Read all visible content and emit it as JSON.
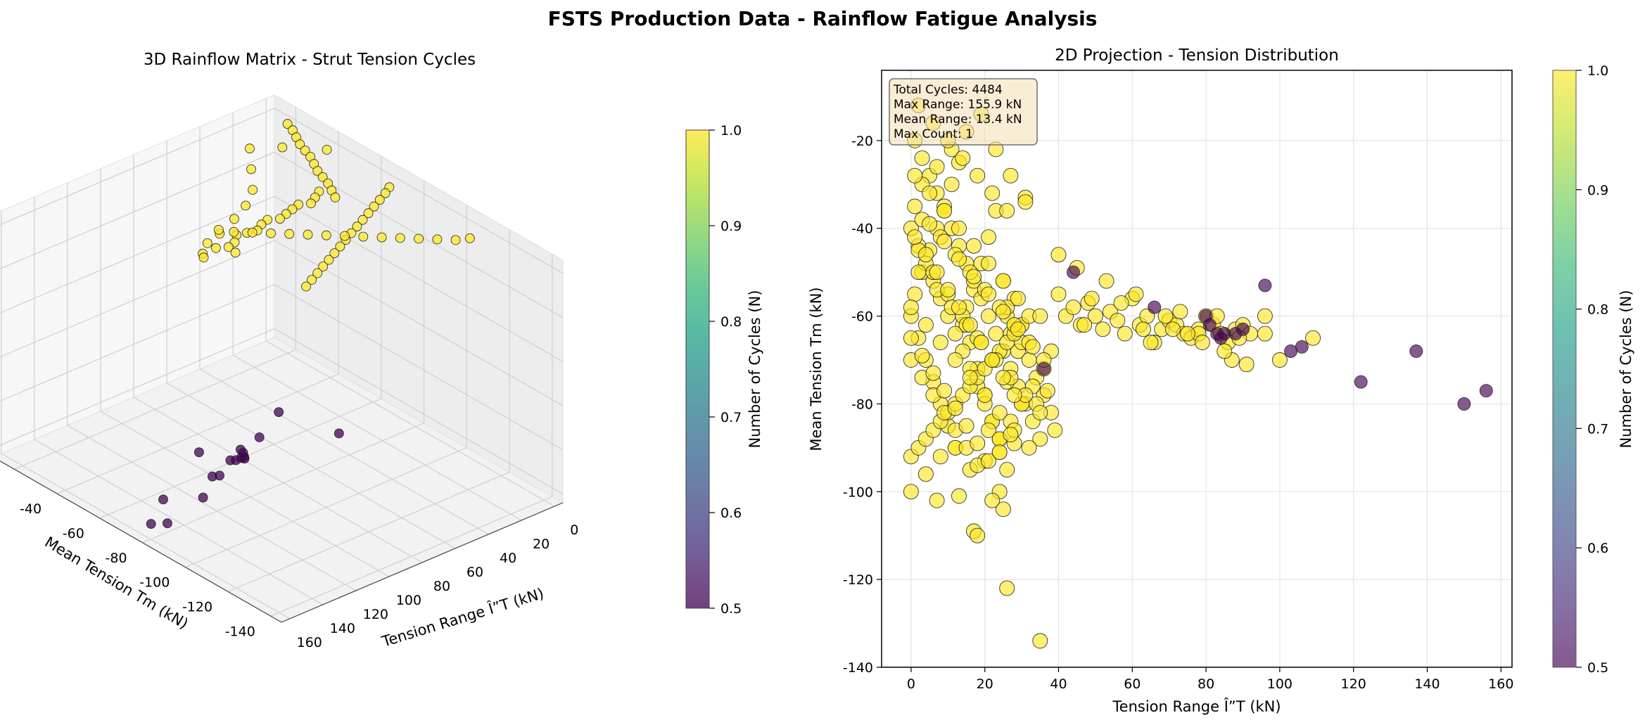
{
  "figure": {
    "title": "FSTS Production Data - Rainflow Fatigue Analysis"
  },
  "colors": {
    "viridis": [
      "#440154",
      "#482878",
      "#3e4989",
      "#31688e",
      "#26828e",
      "#1f9e89",
      "#35b779",
      "#6ece58",
      "#b5de2b",
      "#fde725"
    ],
    "cycle_high": "#fde725",
    "cycle_low": "#440154",
    "grid": "#dcdcdc",
    "pane": "#f2f2f2",
    "statbox_fill": "#f5deb3"
  },
  "chart_data": [
    {
      "type": "scatter3d",
      "title": "3D Rainflow Matrix - Strut Tension Cycles",
      "xlabel": "Tension Range Î”T (kN)",
      "ylabel": "Mean Tension Tm (kN)",
      "zlabel": "",
      "xlim": [
        -5,
        165
      ],
      "ylim": [
        -145,
        -10
      ],
      "zlim": [
        0.48,
        1.03
      ],
      "xticks": [
        0,
        20,
        40,
        60,
        80,
        100,
        120,
        140,
        160
      ],
      "yticks": [
        -140,
        -120,
        -100,
        -80,
        -60,
        -40,
        -20
      ],
      "zticks": [
        0.5,
        0.6,
        0.7,
        0.8,
        0.9,
        1.0
      ],
      "colorbar": {
        "label": "Number of Cycles (N)",
        "range": [
          0.5,
          1.0
        ],
        "ticks": [
          0.5,
          0.6,
          0.7,
          0.8,
          0.9,
          1.0
        ]
      },
      "series": [
        {
          "z": 1.0,
          "x": [
            0,
            2,
            5,
            8,
            10,
            12,
            15,
            18,
            20,
            22,
            25,
            28,
            30,
            35,
            40,
            45,
            50,
            55,
            60,
            65,
            70,
            75,
            80,
            85,
            90,
            95,
            100,
            3,
            8,
            14,
            20,
            26,
            32,
            38,
            44,
            50,
            56,
            62,
            68,
            74,
            80,
            86,
            92,
            6,
            12,
            18,
            24,
            30,
            36,
            42,
            48,
            54,
            60,
            66,
            72,
            78,
            84,
            90,
            2,
            16,
            28,
            40,
            52,
            64,
            76,
            88,
            100,
            108,
            110,
            96
          ],
          "y": [
            -20,
            -24,
            -28,
            -32,
            -36,
            -40,
            -44,
            -48,
            -52,
            -56,
            -60,
            -64,
            -58,
            -60,
            -62,
            -60,
            -61,
            -62,
            -63,
            -61,
            -62,
            -64,
            -63,
            -62,
            -65,
            -66,
            -64,
            -70,
            -72,
            -74,
            -76,
            -78,
            -80,
            -82,
            -84,
            -86,
            -88,
            -90,
            -92,
            -94,
            -96,
            -98,
            -100,
            -110,
            -108,
            -104,
            -100,
            -96,
            -92,
            -88,
            -84,
            -80,
            -76,
            -72,
            -68,
            -64,
            -60,
            -58,
            -40,
            -30,
            -24,
            -34,
            -44,
            -50,
            -54,
            -56,
            -60,
            -64,
            -66,
            -70
          ]
        },
        {
          "z": 0.5,
          "x": [
            156,
            150,
            137,
            122,
            106,
            103,
            96,
            90,
            88,
            85,
            83,
            81,
            80,
            84,
            66,
            44,
            36
          ],
          "y": [
            -77,
            -80,
            -68,
            -75,
            -67,
            -68,
            -53,
            -63,
            -64,
            -64,
            -64,
            -62,
            -60,
            -65,
            -58,
            -50,
            -72
          ]
        }
      ]
    },
    {
      "type": "scatter",
      "title": "2D Projection - Tension Distribution",
      "xlabel": "Tension Range Î”T (kN)",
      "ylabel": "Mean Tension Tm (kN)",
      "xlim": [
        -8,
        163
      ],
      "ylim": [
        -140,
        -4
      ],
      "xticks": [
        0,
        20,
        40,
        60,
        80,
        100,
        120,
        140,
        160
      ],
      "yticks": [
        -140,
        -120,
        -100,
        -80,
        -60,
        -40,
        -20
      ],
      "grid": true,
      "colorbar": {
        "label": "Number of Cycles (N)",
        "range": [
          0.5,
          1.0
        ],
        "ticks": [
          0.5,
          0.6,
          0.7,
          0.8,
          0.9,
          1.0
        ]
      },
      "stats": [
        "Total Cycles: 4484",
        "Max Range: 155.9 kN",
        "Mean Range: 13.4 kN",
        "Max Count: 1"
      ],
      "series": [
        {
          "count": 1,
          "x": [
            0,
            1,
            2,
            3,
            4,
            5,
            6,
            7,
            8,
            9,
            10,
            11,
            12,
            13,
            14,
            15,
            16,
            17,
            18,
            19,
            20,
            21,
            22,
            23,
            24,
            25,
            26,
            27,
            28,
            29,
            30,
            0,
            2,
            4,
            6,
            8,
            10,
            12,
            14,
            16,
            18,
            20,
            22,
            24,
            26,
            28,
            30,
            32,
            34,
            36,
            38,
            1,
            3,
            5,
            7,
            9,
            11,
            13,
            15,
            17,
            19,
            21,
            23,
            25,
            27,
            29,
            31,
            33,
            35,
            40,
            42,
            44,
            46,
            48,
            50,
            52,
            54,
            56,
            58,
            60,
            62,
            64,
            66,
            68,
            70,
            72,
            74,
            76,
            78,
            80,
            82,
            84,
            86,
            88,
            90,
            92,
            96,
            96,
            100,
            109,
            87,
            85,
            78,
            73,
            63,
            31,
            45,
            47,
            49,
            53,
            57,
            61,
            65,
            69,
            71,
            75,
            79,
            83,
            89,
            91,
            0,
            2,
            4,
            6,
            8,
            10,
            12,
            14,
            16,
            18,
            20,
            22,
            24,
            26,
            28,
            30,
            32,
            35,
            3,
            7,
            11,
            15,
            19,
            23,
            27,
            31,
            0,
            4,
            8,
            12,
            16,
            20,
            24,
            28,
            1,
            5,
            9,
            13,
            17,
            21,
            25,
            29,
            2,
            6,
            10,
            14,
            18,
            22,
            26,
            0,
            3,
            6,
            9,
            12,
            15,
            18,
            21,
            24,
            27,
            30,
            33,
            36,
            38,
            40,
            34,
            37,
            25,
            24,
            26,
            17,
            18,
            13,
            22,
            7,
            26,
            35,
            2,
            6,
            10,
            14,
            18,
            22,
            26,
            30,
            3,
            8,
            12,
            16,
            20,
            24,
            28,
            32,
            36,
            1,
            5,
            9,
            13,
            17,
            21,
            25,
            29,
            33,
            0,
            4,
            8,
            12,
            16,
            20,
            24,
            28,
            32,
            2,
            7,
            11,
            15,
            19,
            23,
            27,
            31,
            35,
            39,
            0,
            3,
            6,
            9,
            12,
            15,
            18,
            21,
            24,
            27,
            1,
            4,
            7,
            10,
            13,
            16,
            19,
            22,
            25,
            28
          ],
          "y": [
            -60,
            -55,
            -65,
            -50,
            -70,
            -45,
            -75,
            -40,
            -80,
            -35,
            -85,
            -30,
            -90,
            -25,
            -62,
            -58,
            -66,
            -54,
            -72,
            -48,
            -78,
            -42,
            -84,
            -36,
            -88,
            -52,
            -60,
            -64,
            -56,
            -68,
            -62,
            -40,
            -44,
            -48,
            -52,
            -56,
            -60,
            -64,
            -68,
            -72,
            -76,
            -80,
            -84,
            -88,
            -58,
            -62,
            -66,
            -70,
            -74,
            -78,
            -82,
            -20,
            -24,
            -28,
            -32,
            -36,
            -40,
            -44,
            -48,
            -52,
            -56,
            -60,
            -64,
            -68,
            -72,
            -76,
            -80,
            -84,
            -88,
            -55,
            -60,
            -58,
            -62,
            -57,
            -60,
            -63,
            -59,
            -61,
            -64,
            -56,
            -62,
            -60,
            -66,
            -63,
            -61,
            -62,
            -64,
            -65,
            -63,
            -60,
            -62,
            -64,
            -66,
            -63,
            -62,
            -64,
            -60,
            -64,
            -70,
            -65,
            -70,
            -68,
            -64,
            -59,
            -63,
            -33,
            -49,
            -62,
            -56,
            -52,
            -57,
            -55,
            -66,
            -60,
            -63,
            -64,
            -66,
            -60,
            -65,
            -71,
            -92,
            -90,
            -88,
            -86,
            -84,
            -82,
            -80,
            -78,
            -76,
            -74,
            -72,
            -70,
            -68,
            -66,
            -64,
            -62,
            -60,
            -60,
            -30,
            -26,
            -22,
            -18,
            -14,
            -22,
            -28,
            -34,
            -100,
            -96,
            -92,
            -90,
            -95,
            -93,
            -91,
            -89,
            -28,
            -32,
            -36,
            -40,
            -44,
            -48,
            -52,
            -56,
            -12,
            -16,
            -20,
            -24,
            -28,
            -32,
            -36,
            -70,
            -74,
            -78,
            -82,
            -86,
            -90,
            -94,
            -86,
            -88,
            -84,
            -80,
            -76,
            -72,
            -68,
            -46,
            -80,
            -77,
            -104,
            -100,
            -122,
            -109,
            -110,
            -101,
            -102,
            -102,
            -95,
            -134,
            -45,
            -50,
            -55,
            -60,
            -65,
            -70,
            -75,
            -80,
            -38,
            -42,
            -46,
            -50,
            -54,
            -58,
            -62,
            -66,
            -70,
            -35,
            -39,
            -43,
            -47,
            -51,
            -55,
            -59,
            -63,
            -67,
            -58,
            -62,
            -66,
            -70,
            -74,
            -78,
            -82,
            -86,
            -90,
            -50,
            -54,
            -58,
            -62,
            -66,
            -70,
            -74,
            -78,
            -82,
            -86,
            -65,
            -69,
            -73,
            -77,
            -81,
            -85,
            -89,
            -93,
            -91,
            -87,
            -42,
            -46,
            -50,
            -54,
            -58,
            -62,
            -66,
            -70,
            -74,
            -78
          ]
        },
        {
          "count": 0.5,
          "x": [
            156,
            150,
            137,
            122,
            106,
            103,
            96,
            90,
            88,
            85,
            83,
            81,
            80,
            84,
            66,
            44,
            36
          ],
          "y": [
            -77,
            -80,
            -68,
            -75,
            -67,
            -68,
            -53,
            -63,
            -64,
            -64,
            -64,
            -62,
            -60,
            -65,
            -58,
            -50,
            -72
          ]
        }
      ]
    }
  ]
}
